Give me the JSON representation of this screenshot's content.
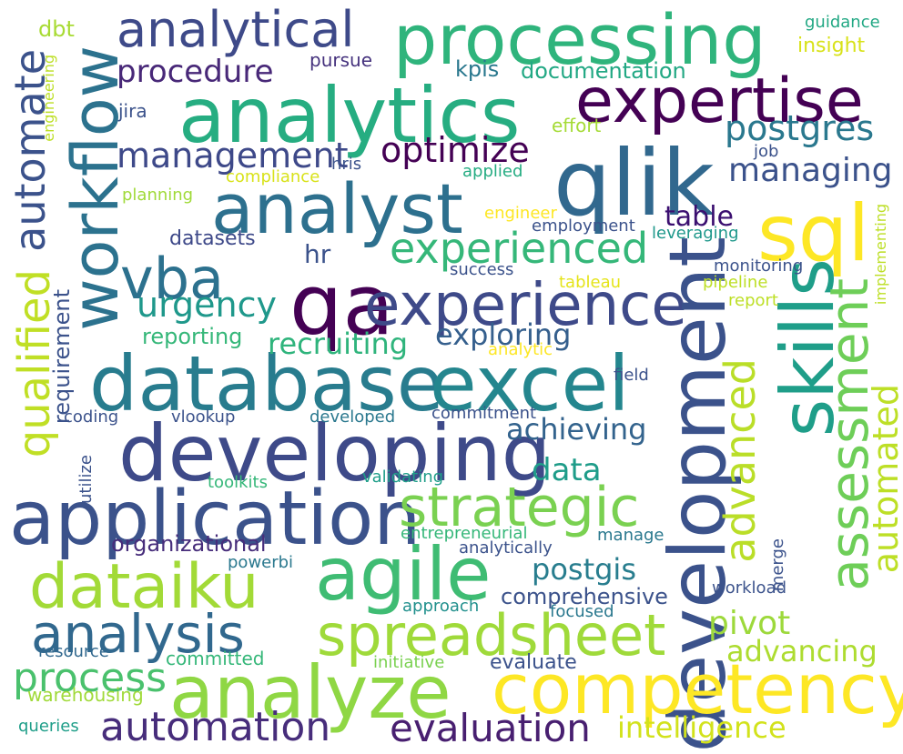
{
  "words": [
    {
      "text": "processing",
      "color": "#2fb47c"
    },
    {
      "text": "analytics",
      "color": "#26ad81"
    },
    {
      "text": "expertise",
      "color": "#440154"
    },
    {
      "text": "analytical",
      "color": "#3e4a89"
    },
    {
      "text": "qlik",
      "color": "#31688e"
    },
    {
      "text": "analyst",
      "color": "#2d708e"
    },
    {
      "text": "workflow",
      "color": "#2c728e"
    },
    {
      "text": "automate",
      "color": "#3b528b"
    },
    {
      "text": "procedure",
      "color": "#482878"
    },
    {
      "text": "management",
      "color": "#3e4989"
    },
    {
      "text": "optimize",
      "color": "#440154"
    },
    {
      "text": "postgres",
      "color": "#2a788e"
    },
    {
      "text": "managing",
      "color": "#3b528b"
    },
    {
      "text": "sql",
      "color": "#fde725"
    },
    {
      "text": "qa",
      "color": "#440154"
    },
    {
      "text": "vba",
      "color": "#2c718e"
    },
    {
      "text": "experienced",
      "color": "#35b779"
    },
    {
      "text": "experience",
      "color": "#3e4a89"
    },
    {
      "text": "development",
      "color": "#3b528b"
    },
    {
      "text": "skills",
      "color": "#1f9e89"
    },
    {
      "text": "assessment",
      "color": "#6ece58"
    },
    {
      "text": "database",
      "color": "#287c8e"
    },
    {
      "text": "excel",
      "color": "#24868e"
    },
    {
      "text": "developing",
      "color": "#3e4a89"
    },
    {
      "text": "application",
      "color": "#3b528b"
    },
    {
      "text": "strategic",
      "color": "#7ad151"
    },
    {
      "text": "agile",
      "color": "#3fbc73"
    },
    {
      "text": "dataiku",
      "color": "#a2da37"
    },
    {
      "text": "analysis",
      "color": "#31688e"
    },
    {
      "text": "spreadsheet",
      "color": "#9fda3a"
    },
    {
      "text": "analyze",
      "color": "#8fd744"
    },
    {
      "text": "competency",
      "color": "#fde725"
    },
    {
      "text": "qualified",
      "color": "#c0df25"
    },
    {
      "text": "advanced",
      "color": "#bade28"
    },
    {
      "text": "automated",
      "color": "#bddf26"
    },
    {
      "text": "pivot",
      "color": "#9dd93b"
    },
    {
      "text": "advancing",
      "color": "#addc30"
    },
    {
      "text": "process",
      "color": "#4ac16d"
    },
    {
      "text": "automation",
      "color": "#472d7b"
    },
    {
      "text": "evaluation",
      "color": "#481f70"
    },
    {
      "text": "intelligence",
      "color": "#d2e21b"
    },
    {
      "text": "urgency",
      "color": "#1f988b"
    },
    {
      "text": "recruiting",
      "color": "#2fb47c"
    },
    {
      "text": "exploring",
      "color": "#355f8d"
    },
    {
      "text": "achieving",
      "color": "#33638d"
    },
    {
      "text": "data",
      "color": "#1e9c89"
    },
    {
      "text": "organizational",
      "color": "#472d7b"
    },
    {
      "text": "postgis",
      "color": "#287d8e"
    },
    {
      "text": "comprehensive",
      "color": "#3b528b"
    },
    {
      "text": "table",
      "color": "#3b0f70"
    },
    {
      "text": "hr",
      "color": "#3b528b"
    },
    {
      "text": "datasets",
      "color": "#3e4989"
    },
    {
      "text": "reporting",
      "color": "#35b779"
    },
    {
      "text": "requirement",
      "color": "#3b528b"
    },
    {
      "text": "kpis",
      "color": "#2a788e"
    },
    {
      "text": "documentation",
      "color": "#22a884"
    },
    {
      "text": "dbt",
      "color": "#a8db34"
    },
    {
      "text": "pursue",
      "color": "#46337e"
    },
    {
      "text": "jira",
      "color": "#3b528b"
    },
    {
      "text": "effort",
      "color": "#a5db36"
    },
    {
      "text": "job",
      "color": "#3b528b"
    },
    {
      "text": "hris",
      "color": "#3b528b"
    },
    {
      "text": "compliance",
      "color": "#d8e219"
    },
    {
      "text": "applied",
      "color": "#25ac82"
    },
    {
      "text": "planning",
      "color": "#a0da39"
    },
    {
      "text": "engineer",
      "color": "#fde725"
    },
    {
      "text": "employment",
      "color": "#3b528b"
    },
    {
      "text": "leveraging",
      "color": "#1f988b"
    },
    {
      "text": "success",
      "color": "#3b528b"
    },
    {
      "text": "tableau",
      "color": "#e5e419"
    },
    {
      "text": "monitoring",
      "color": "#3b528b"
    },
    {
      "text": "pipeline",
      "color": "#bddf26"
    },
    {
      "text": "report",
      "color": "#bddf26"
    },
    {
      "text": "analytic",
      "color": "#fde725"
    },
    {
      "text": "field",
      "color": "#3b528b"
    },
    {
      "text": "coding",
      "color": "#3b528b"
    },
    {
      "text": "vlookup",
      "color": "#3b528b"
    },
    {
      "text": "developed",
      "color": "#2a788e"
    },
    {
      "text": "commitment",
      "color": "#3b528b"
    },
    {
      "text": "utilize",
      "color": "#3b528b"
    },
    {
      "text": "toolkits",
      "color": "#35b779"
    },
    {
      "text": "validating",
      "color": "#1f9e89"
    },
    {
      "text": "entrepreneurial",
      "color": "#35b779"
    },
    {
      "text": "manage",
      "color": "#2a788e"
    },
    {
      "text": "analytically",
      "color": "#3b528b"
    },
    {
      "text": "powerbi",
      "color": "#2a788e"
    },
    {
      "text": "merge",
      "color": "#3b528b"
    },
    {
      "text": "approach",
      "color": "#21908d"
    },
    {
      "text": "focused",
      "color": "#2a788e"
    },
    {
      "text": "workload",
      "color": "#3b528b"
    },
    {
      "text": "resource",
      "color": "#31688e"
    },
    {
      "text": "committed",
      "color": "#35b779"
    },
    {
      "text": "initiative",
      "color": "#7ad151"
    },
    {
      "text": "evaluate",
      "color": "#3b528b"
    },
    {
      "text": "warehousing",
      "color": "#a0da39"
    },
    {
      "text": "queries",
      "color": "#1f9e89"
    },
    {
      "text": "guidance",
      "color": "#22a884"
    },
    {
      "text": "insight",
      "color": "#d8e219"
    },
    {
      "text": "engineering",
      "color": "#bddf26"
    },
    {
      "text": "implementing",
      "color": "#bddf26"
    }
  ]
}
